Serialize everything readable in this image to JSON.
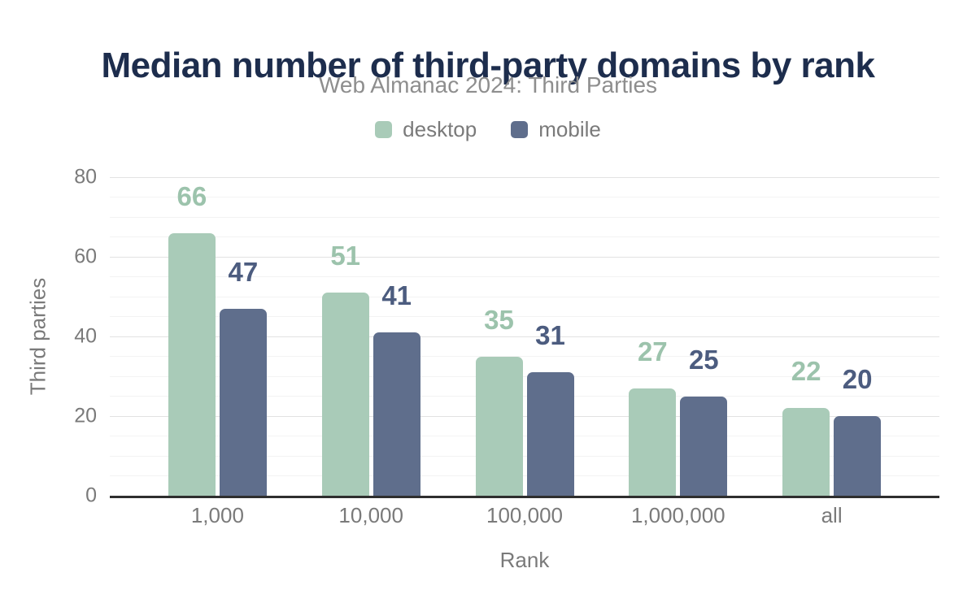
{
  "chart_data": {
    "type": "bar",
    "title": "Median number of third-party domains by rank",
    "subtitle": "Web Almanac 2024: Third Parties",
    "categories": [
      "1,000",
      "10,000",
      "100,000",
      "1,000,000",
      "all"
    ],
    "series": [
      {
        "name": "desktop",
        "values": [
          66,
          51,
          35,
          27,
          22
        ],
        "color": "#a9cbb8",
        "label_color": "#9cc3ac"
      },
      {
        "name": "mobile",
        "values": [
          47,
          41,
          31,
          25,
          20
        ],
        "color": "#5f6e8c",
        "label_color": "#4c5c7f"
      }
    ],
    "xlabel": "Rank",
    "ylabel": "Third parties",
    "ylim": [
      0,
      80
    ],
    "yticks": [
      0,
      20,
      40,
      60,
      80
    ],
    "minor_gridline_step": 5,
    "grid": true,
    "legend_position": "top",
    "data_labels": true
  },
  "colors": {
    "title": "#1d2d4d",
    "subtitle": "#8e8e8e",
    "axis_text": "#7a7a7a",
    "major_gridline": "#e2e2e2",
    "minor_gridline": "#f3f3f3",
    "axis_line": "#2e2e2e",
    "background": "#ffffff"
  }
}
